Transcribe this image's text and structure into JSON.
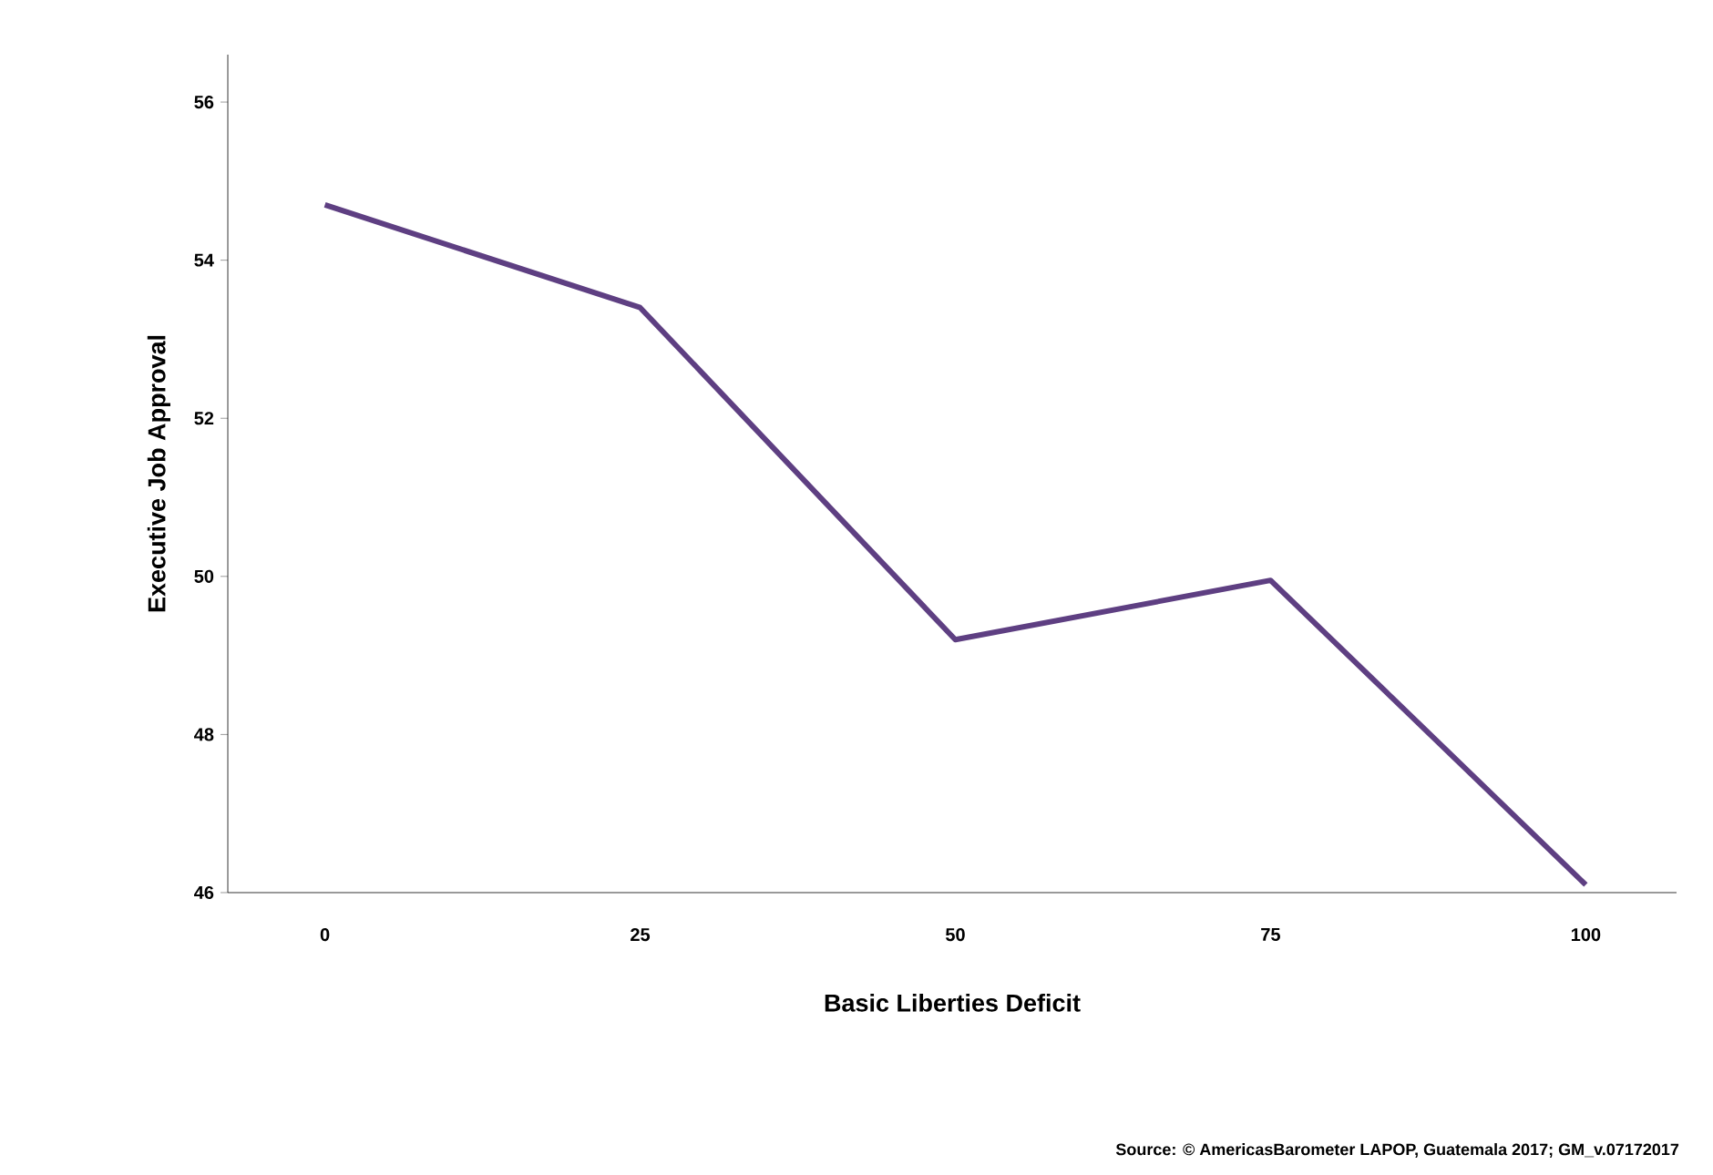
{
  "chart_data": {
    "type": "line",
    "xlabel": "Basic Liberties Deficit",
    "ylabel": "Executive Job Approval",
    "x": [
      0,
      25,
      50,
      75,
      100
    ],
    "series": [
      {
        "color": "#5e3f82",
        "values": [
          54.7,
          53.4,
          49.2,
          49.95,
          46.1
        ]
      }
    ],
    "xlim": [
      -7.7,
      107.2
    ],
    "ylim": [
      46,
      56.6
    ],
    "xticks": [
      0,
      25,
      50,
      75,
      100
    ],
    "yticks": [
      46,
      48,
      50,
      52,
      54,
      56
    ],
    "grid": false,
    "marker": "none",
    "line_style": "solid",
    "annotations": [
      "Source: © AmericasBarometer LAPOP, Guatemala 2017; GM_v.07172017"
    ]
  }
}
